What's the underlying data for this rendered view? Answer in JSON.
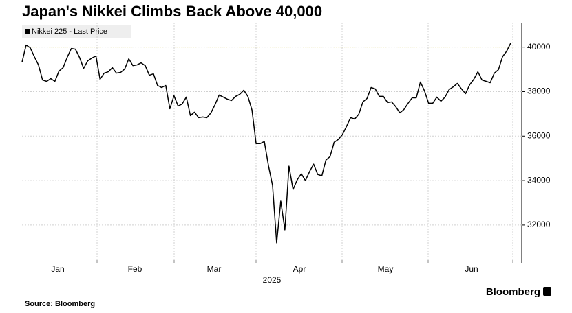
{
  "chart_data": {
    "type": "line",
    "title": "Japan's Nikkei Climbs Back Above 40,000",
    "x_axis_labels": [
      "Jan",
      "Feb",
      "Mar",
      "Apr",
      "May",
      "Jun"
    ],
    "x_axis_year": "2025",
    "series": [
      {
        "name": "Nikkei 225 - Last Price",
        "color": "#000000",
        "values": [
          39323,
          40092,
          39969,
          39569,
          39200,
          38523,
          38462,
          38585,
          38462,
          38923,
          39077,
          39538,
          39938,
          39908,
          39538,
          39046,
          39385,
          39508,
          39600,
          38554,
          38831,
          38892,
          39077,
          38831,
          38862,
          39015,
          39477,
          39169,
          39200,
          39292,
          39169,
          38738,
          38800,
          38277,
          38185,
          38277,
          37231,
          37815,
          37354,
          37446,
          37754,
          36923,
          37077,
          36831,
          36862,
          36831,
          37046,
          37415,
          37846,
          37754,
          37662,
          37600,
          37785,
          37877,
          38062,
          37785,
          37169,
          35662,
          35662,
          35754,
          34677,
          33785,
          31200,
          33077,
          31785,
          34646,
          33600,
          34031,
          34308,
          34000,
          34400,
          34738,
          34277,
          34215,
          34923,
          35077,
          35723,
          35846,
          36062,
          36431,
          36831,
          36769,
          36985,
          37538,
          37692,
          38185,
          38123,
          37785,
          37785,
          37508,
          37538,
          37323,
          37046,
          37200,
          37477,
          37723,
          37723,
          38431,
          38031,
          37477,
          37477,
          37754,
          37569,
          37754,
          38092,
          38215,
          38369,
          38123,
          37908,
          38308,
          38554,
          38892,
          38523,
          38462,
          38400,
          38831,
          38985,
          39569,
          39815,
          40185
        ]
      }
    ],
    "ylim": [
      30300,
      41100
    ],
    "yticks": [
      32000,
      34000,
      36000,
      38000,
      40000
    ],
    "reference_line": 40000,
    "grid": true,
    "source": "Source: Bloomberg",
    "brand": "Bloomberg"
  }
}
